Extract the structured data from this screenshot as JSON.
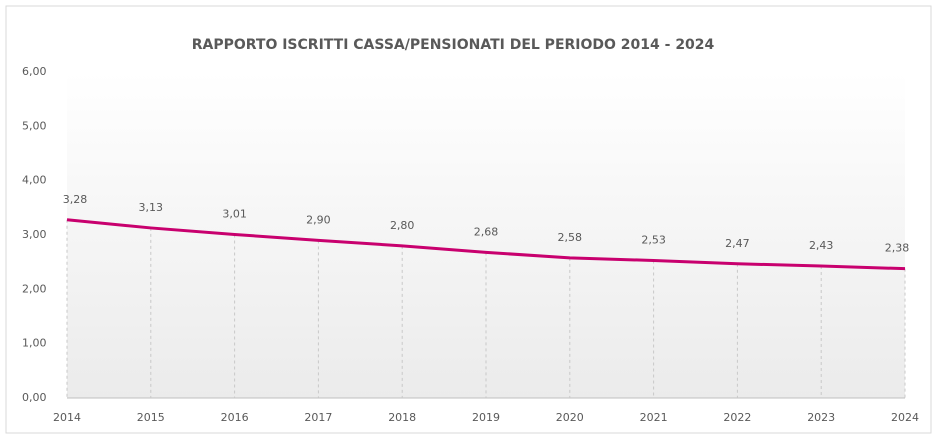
{
  "chart_data": {
    "type": "line",
    "title": "RAPPORTO ISCRITTI CASSA/PENSIONATI DEL PERIODO 2014 - 2024",
    "categories": [
      "2014",
      "2015",
      "2016",
      "2017",
      "2018",
      "2019",
      "2020",
      "2021",
      "2022",
      "2023",
      "2024"
    ],
    "values": [
      3.28,
      3.13,
      3.01,
      2.9,
      2.8,
      2.68,
      2.58,
      2.53,
      2.47,
      2.43,
      2.38
    ],
    "value_labels": [
      "3,28",
      "3,13",
      "3,01",
      "2,90",
      "2,80",
      "2,68",
      "2,58",
      "2,53",
      "2,47",
      "2,43",
      "2,38"
    ],
    "color": "#c8006e",
    "ylim": [
      0,
      6
    ],
    "yticks": [
      {
        "value": 0,
        "label": "0,00"
      },
      {
        "value": 1,
        "label": "1,00"
      },
      {
        "value": 2,
        "label": "2,00"
      },
      {
        "value": 3,
        "label": "3,00"
      },
      {
        "value": 4,
        "label": "4,00"
      },
      {
        "value": 5,
        "label": "5,00"
      },
      {
        "value": 6,
        "label": "6,00"
      }
    ],
    "drop_lines": true
  }
}
